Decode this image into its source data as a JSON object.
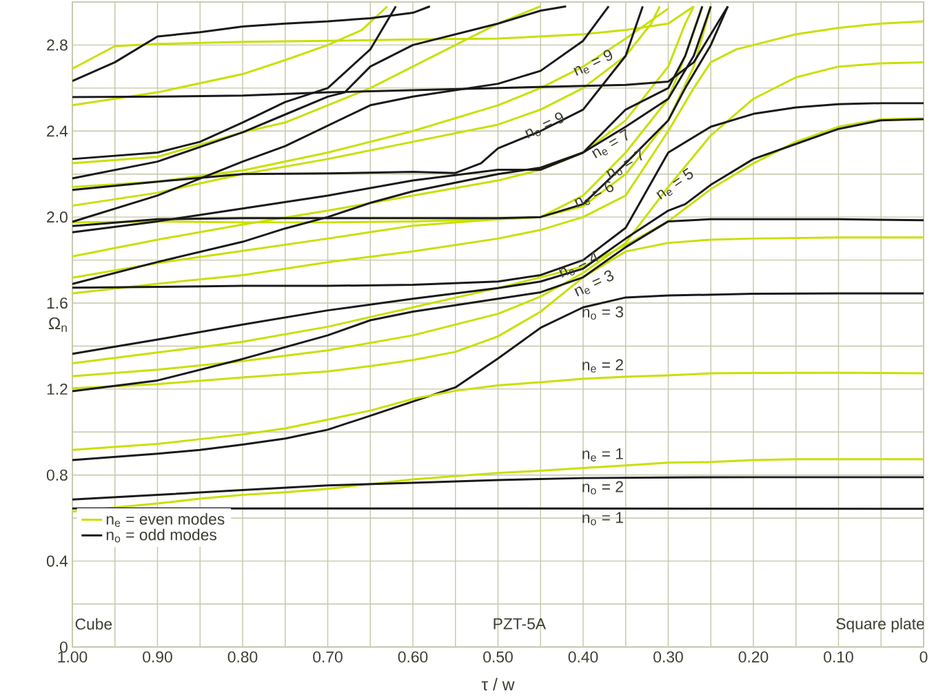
{
  "chart_data": {
    "type": "line",
    "xlabel": "τ / w",
    "ylabel": "Ω$_{n}$",
    "xlim": [
      1,
      0
    ],
    "ylim": [
      0,
      3
    ],
    "xticks": [
      {
        "value": 1,
        "label": "1.00"
      },
      {
        "value": 0.9,
        "label": "0.90"
      },
      {
        "value": 0.8,
        "label": "0.80"
      },
      {
        "value": 0.7,
        "label": "0.70"
      },
      {
        "value": 0.6,
        "label": "0.60"
      },
      {
        "value": 0.5,
        "label": "0.50"
      },
      {
        "value": 0.4,
        "label": "0.40"
      },
      {
        "value": 0.3,
        "label": "0.30"
      },
      {
        "value": 0.2,
        "label": "0.20"
      },
      {
        "value": 0.1,
        "label": "0.10"
      },
      0
    ],
    "yticks": [
      0,
      0.4,
      0.8,
      1.2,
      1.6,
      {
        "value": 2,
        "label": "2.0"
      },
      2.4,
      2.8
    ],
    "grid": true,
    "legend": "bottom left",
    "series": [
      {
        "name": "n$_{e}$ = even modes",
        "color": "#c8e000",
        "x": [
          1,
          0.9,
          0.85,
          0.8,
          0.75,
          0.7,
          0.65,
          0.6,
          0.5,
          0.45,
          0.4,
          0.35,
          0.3,
          0.25,
          0.2,
          0.15,
          0.1,
          0.05,
          0
        ],
        "values": [
          0.63,
          0.668,
          0.69,
          0.708,
          0.72,
          0.736,
          0.758,
          0.78,
          0.81,
          0.82,
          0.833,
          0.845,
          0.858,
          0.861,
          0.87,
          0.874,
          0.874,
          0.874,
          0.874
        ]
      },
      {
        "name": "n$_{o}$ = odd modes",
        "color": "#1a1a1a",
        "x": [
          1,
          0.5,
          0
        ],
        "values": [
          0.645,
          0.645,
          0.643
        ]
      },
      {
        "color": "#1a1a1a",
        "x": [
          1,
          0.9,
          0.8,
          0.7,
          0.6,
          0.5,
          0.4,
          0.3,
          0.2,
          0.1,
          0
        ],
        "values": [
          0.686,
          0.708,
          0.73,
          0.752,
          0.764,
          0.777,
          0.786,
          0.789,
          0.79,
          0.79,
          0.79
        ]
      },
      {
        "color": "#1a1a1a",
        "x": [
          1,
          0.9,
          0.85,
          0.8,
          0.75,
          0.7,
          0.65,
          0.6,
          0.55,
          0.5,
          0.45,
          0.4,
          0.35,
          0.3,
          0.2,
          0.1,
          0
        ],
        "values": [
          0.87,
          0.899,
          0.917,
          0.942,
          0.97,
          1.011,
          1.076,
          1.142,
          1.208,
          1.342,
          1.485,
          1.58,
          1.626,
          1.635,
          1.643,
          1.645,
          1.645
        ]
      },
      {
        "color": "#c8e000",
        "x": [
          1,
          0.9,
          0.85,
          0.8,
          0.75,
          0.7,
          0.65,
          0.6,
          0.55,
          0.5,
          0.45,
          0.4,
          0.35,
          0.3,
          0.25,
          0.2,
          0.1,
          0
        ],
        "values": [
          0.917,
          0.945,
          0.967,
          0.989,
          1.017,
          1.058,
          1.1,
          1.154,
          1.192,
          1.217,
          1.232,
          1.248,
          1.257,
          1.264,
          1.273,
          1.275,
          1.276,
          1.273
        ]
      },
      {
        "color": "#c8e000",
        "x": [
          1,
          0.9,
          0.8,
          0.7,
          0.65,
          0.6,
          0.55,
          0.5,
          0.45,
          0.4,
          0.35,
          0.3,
          0.25,
          0.2,
          0.1,
          0
        ],
        "values": [
          1.204,
          1.223,
          1.254,
          1.282,
          1.307,
          1.335,
          1.373,
          1.445,
          1.56,
          1.72,
          1.84,
          1.88,
          1.895,
          1.9,
          1.905,
          1.905
        ]
      },
      {
        "color": "#c8e000",
        "x": [
          1,
          0.9,
          0.8,
          0.7,
          0.6,
          0.5,
          0.45,
          0.4,
          0.35,
          0.3,
          0.25,
          0.2,
          0.15,
          0.1,
          0.05,
          0
        ],
        "values": [
          1.26,
          1.29,
          1.33,
          1.38,
          1.45,
          1.55,
          1.63,
          1.74,
          1.88,
          2.14,
          2.38,
          2.55,
          2.65,
          2.7,
          2.715,
          2.72
        ]
      },
      {
        "color": "#c8e000",
        "x": [
          1,
          0.9,
          0.8,
          0.7,
          0.6,
          0.5,
          0.45,
          0.4,
          0.35,
          0.3,
          0.25,
          0.2,
          0.15,
          0.1,
          0.05,
          0
        ],
        "values": [
          1.32,
          1.37,
          1.42,
          1.49,
          1.58,
          1.67,
          1.72,
          1.77,
          1.87,
          1.98,
          2.13,
          2.25,
          2.35,
          2.42,
          2.455,
          2.46
        ]
      },
      {
        "color": "#c8e000",
        "x": [
          1,
          0.9,
          0.8,
          0.7,
          0.6,
          0.5,
          0.45,
          0.4,
          0.35,
          0.3,
          0.27,
          0.25,
          0.22,
          0.2,
          0.15,
          0.1,
          0.05,
          0
        ],
        "values": [
          1.645,
          1.69,
          1.73,
          1.79,
          1.84,
          1.9,
          1.94,
          2.0,
          2.1,
          2.4,
          2.6,
          2.72,
          2.78,
          2.8,
          2.85,
          2.88,
          2.9,
          2.91
        ]
      },
      {
        "color": "#c8e000",
        "x": [
          1,
          0.9,
          0.8,
          0.7,
          0.65,
          0.6,
          0.5,
          0.45,
          0.4,
          0.35,
          0.3,
          0.27,
          0.25
        ],
        "values": [
          1.718,
          1.786,
          1.843,
          1.9,
          1.93,
          1.96,
          1.99,
          2.0,
          2.05,
          2.2,
          2.45,
          2.7,
          2.98
        ]
      },
      {
        "color": "#c8e000",
        "x": [
          1,
          0.9,
          0.8,
          0.7,
          0.6,
          0.5,
          0.45,
          0.4,
          0.35,
          0.3,
          0.28,
          0.27
        ],
        "values": [
          1.817,
          1.895,
          1.965,
          2.03,
          2.1,
          2.17,
          2.22,
          2.3,
          2.45,
          2.7,
          2.9,
          2.98
        ]
      },
      {
        "color": "#c8e000",
        "x": [
          1,
          0.9,
          0.8,
          0.7,
          0.6,
          0.5,
          0.45,
          0.4,
          0.35,
          0.3,
          0.28,
          0.26
        ],
        "values": [
          1.975,
          1.98,
          1.975,
          1.975,
          1.98,
          1.99,
          2.0,
          2.1,
          2.3,
          2.55,
          2.75,
          2.98
        ]
      },
      {
        "color": "#c8e000",
        "x": [
          1,
          0.9,
          0.8,
          0.7,
          0.6,
          0.5,
          0.45,
          0.4,
          0.35,
          0.32,
          0.31
        ],
        "values": [
          2.053,
          2.113,
          2.2,
          2.27,
          2.35,
          2.43,
          2.5,
          2.6,
          2.75,
          2.9,
          2.98
        ]
      },
      {
        "color": "#c8e000",
        "x": [
          1,
          0.9,
          0.8,
          0.7,
          0.6,
          0.5,
          0.45,
          0.4,
          0.35,
          0.3
        ],
        "values": [
          2.14,
          2.165,
          2.217,
          2.3,
          2.4,
          2.52,
          2.6,
          2.7,
          2.83,
          2.97
        ]
      },
      {
        "color": "#c8e000",
        "x": [
          1,
          0.9,
          0.8,
          0.75,
          0.7,
          0.65,
          0.6,
          0.55,
          0.5,
          0.45
        ],
        "values": [
          2.25,
          2.28,
          2.394,
          2.44,
          2.52,
          2.6,
          2.7,
          2.8,
          2.9,
          2.98
        ]
      },
      {
        "color": "#c8e000",
        "x": [
          1,
          0.9,
          0.8,
          0.75,
          0.7,
          0.66,
          0.63
        ],
        "values": [
          2.52,
          2.58,
          2.665,
          2.73,
          2.8,
          2.87,
          2.98
        ]
      },
      {
        "color": "#c8e000",
        "x": [
          1,
          0.95,
          0.9,
          0.8,
          0.7,
          0.6,
          0.5,
          0.4,
          0.35,
          0.3,
          0.27
        ],
        "values": [
          2.69,
          2.795,
          2.805,
          2.815,
          2.82,
          2.826,
          2.83,
          2.85,
          2.87,
          2.9,
          2.98
        ]
      },
      {
        "color": "#1a1a1a",
        "x": [
          1,
          0.95,
          0.9,
          0.85,
          0.8,
          0.75,
          0.7,
          0.65,
          0.6,
          0.58
        ],
        "values": [
          2.633,
          2.72,
          2.84,
          2.86,
          2.886,
          2.9,
          2.91,
          2.925,
          2.95,
          2.98
        ]
      },
      {
        "color": "#1a1a1a",
        "x": [
          1,
          0.9,
          0.8,
          0.7,
          0.6,
          0.5,
          0.4,
          0.35,
          0.3,
          0.27,
          0.25,
          0.23
        ],
        "values": [
          2.558,
          2.56,
          2.565,
          2.58,
          2.59,
          2.6,
          2.61,
          2.615,
          2.63,
          2.72,
          2.85,
          2.98
        ]
      },
      {
        "color": "#1a1a1a",
        "x": [
          1,
          0.9,
          0.85,
          0.8,
          0.75,
          0.7,
          0.65,
          0.62
        ],
        "values": [
          2.27,
          2.3,
          2.35,
          2.44,
          2.535,
          2.6,
          2.78,
          2.98
        ]
      },
      {
        "color": "#1a1a1a",
        "x": [
          1,
          0.9,
          0.8,
          0.75,
          0.7,
          0.68,
          0.65,
          0.6,
          0.5,
          0.45,
          0.42
        ],
        "values": [
          2.18,
          2.258,
          2.394,
          2.477,
          2.56,
          2.58,
          2.7,
          2.8,
          2.9,
          2.96,
          2.98
        ]
      },
      {
        "color": "#1a1a1a",
        "x": [
          1,
          0.9,
          0.8,
          0.7,
          0.6,
          0.55,
          0.52,
          0.5,
          0.45,
          0.4,
          0.35,
          0.33
        ],
        "values": [
          2.126,
          2.165,
          2.2,
          2.203,
          2.21,
          2.205,
          2.25,
          2.32,
          2.4,
          2.5,
          2.75,
          2.98
        ]
      },
      {
        "color": "#1a1a1a",
        "x": [
          1,
          0.9,
          0.8,
          0.75,
          0.7,
          0.65,
          0.6,
          0.5,
          0.45,
          0.4,
          0.37
        ],
        "values": [
          1.978,
          2.1,
          2.258,
          2.33,
          2.425,
          2.52,
          2.56,
          2.62,
          2.68,
          2.82,
          2.98
        ]
      },
      {
        "color": "#1a1a1a",
        "x": [
          1,
          0.9,
          0.8,
          0.6,
          0.5,
          0.45,
          0.4,
          0.35,
          0.3,
          0.28,
          0.25,
          0.23
        ],
        "values": [
          1.958,
          1.99,
          1.995,
          1.995,
          1.995,
          2.0,
          2.06,
          2.25,
          2.45,
          2.6,
          2.8,
          2.98
        ]
      },
      {
        "color": "#1a1a1a",
        "x": [
          1,
          0.9,
          0.8,
          0.7,
          0.6,
          0.5,
          0.45,
          0.4,
          0.35,
          0.3,
          0.27,
          0.25
        ],
        "values": [
          1.929,
          1.98,
          2.04,
          2.1,
          2.17,
          2.22,
          2.22,
          2.3,
          2.42,
          2.55,
          2.75,
          2.98
        ]
      },
      {
        "color": "#1a1a1a",
        "x": [
          1,
          0.9,
          0.8,
          0.75,
          0.7,
          0.65,
          0.6,
          0.5,
          0.45,
          0.4,
          0.35,
          0.3,
          0.28,
          0.26
        ],
        "values": [
          1.689,
          1.791,
          1.885,
          1.947,
          2.0,
          2.066,
          2.12,
          2.2,
          2.23,
          2.3,
          2.5,
          2.6,
          2.75,
          2.98
        ]
      },
      {
        "color": "#1a1a1a",
        "x": [
          1,
          0.9,
          0.8,
          0.7,
          0.6,
          0.5,
          0.45,
          0.4,
          0.35,
          0.3,
          0.25,
          0.2,
          0.15,
          0.1,
          0.05,
          0
        ],
        "values": [
          1.671,
          1.675,
          1.68,
          1.68,
          1.685,
          1.7,
          1.73,
          1.8,
          1.95,
          2.3,
          2.42,
          2.48,
          2.51,
          2.525,
          2.53,
          2.53
        ]
      },
      {
        "color": "#1a1a1a",
        "x": [
          1,
          0.9,
          0.8,
          0.7,
          0.6,
          0.5,
          0.45,
          0.4,
          0.35,
          0.3,
          0.28,
          0.25,
          0.2,
          0.15,
          0.1,
          0.05,
          0
        ],
        "values": [
          1.364,
          1.43,
          1.5,
          1.566,
          1.62,
          1.67,
          1.7,
          1.76,
          1.9,
          2.03,
          2.06,
          2.15,
          2.27,
          2.34,
          2.41,
          2.45,
          2.455
        ]
      },
      {
        "color": "#1a1a1a",
        "x": [
          1,
          0.9,
          0.8,
          0.7,
          0.65,
          0.6,
          0.5,
          0.45,
          0.4,
          0.35,
          0.3,
          0.25,
          0.2,
          0.1,
          0
        ],
        "values": [
          1.19,
          1.24,
          1.34,
          1.45,
          1.52,
          1.56,
          1.62,
          1.65,
          1.72,
          1.86,
          1.98,
          1.99,
          1.99,
          1.99,
          1.985
        ]
      }
    ],
    "annotations": [
      "n$_{e}$ = 9",
      "n$_{o}$ = 9",
      "n$_{e}$ = 7",
      "n$_{o}$ = 7",
      "n$_{e}$ = 6",
      "n$_{e}$ = 5",
      "n$_{o}$ = 4",
      "n$_{e}$ = 3",
      "n$_{o}$ = 3",
      "n$_{e}$ = 2",
      "n$_{e}$ = 1",
      "n$_{o}$ = 2",
      "n$_{o}$ = 1",
      "Cube",
      "PZT-5A",
      "Square plate"
    ]
  }
}
